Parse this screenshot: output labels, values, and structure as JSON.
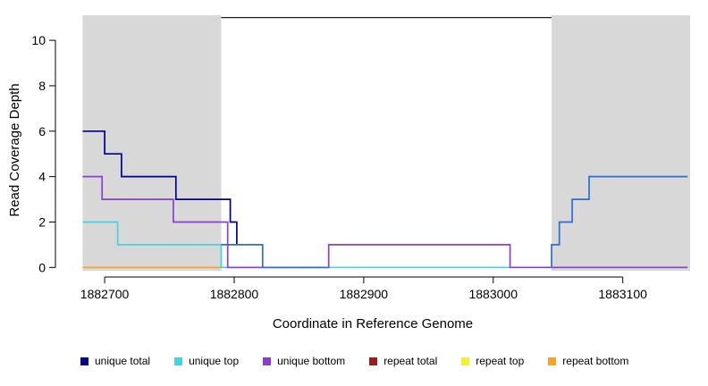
{
  "chart_data": {
    "type": "line",
    "subtype": "step",
    "title": "",
    "xlabel": "Coordinate in Reference Genome",
    "ylabel": "Read Coverage Depth",
    "xlim": [
      1882662,
      1883152
    ],
    "ylim": [
      -0.42,
      11.46
    ],
    "x_ticks": [
      1882700,
      1882800,
      1882900,
      1883000,
      1883100
    ],
    "y_ticks": [
      0,
      2,
      4,
      6,
      8,
      10
    ],
    "grid": false,
    "plot_background": "#FFFFFF",
    "background_bands": {
      "color": "#D8D8D8",
      "y_extent": [
        -0.15,
        11.1
      ],
      "regions": [
        [
          1882683,
          1882790
        ],
        [
          1883045,
          1883152
        ]
      ]
    },
    "top_marker": {
      "y": 11,
      "x1": 1882790,
      "x2": 1883045,
      "color": "#000000"
    },
    "series": [
      {
        "name": "repeat bottom",
        "color": "#F5A329",
        "points": [
          [
            1882683,
            0
          ],
          [
            1882790,
            0
          ]
        ]
      },
      {
        "name": "unique top",
        "color": "#45D4DE",
        "points": [
          [
            1882683,
            2
          ],
          [
            1882710,
            2
          ],
          [
            1882710,
            1
          ],
          [
            1882790,
            1
          ],
          [
            1882790,
            0
          ],
          [
            1883013,
            0
          ]
        ]
      },
      {
        "name": "unique bottom",
        "color": "#8A3FD1",
        "points": [
          [
            1882683,
            4
          ],
          [
            1882698,
            4
          ],
          [
            1882698,
            3
          ],
          [
            1882753,
            3
          ],
          [
            1882753,
            2
          ],
          [
            1882795,
            2
          ],
          [
            1882795,
            0
          ],
          [
            1882873,
            0
          ],
          [
            1882873,
            1
          ],
          [
            1883013,
            1
          ],
          [
            1883013,
            0
          ],
          [
            1883150,
            0
          ]
        ]
      },
      {
        "name": "unique total left",
        "color": "#00008B",
        "points": [
          [
            1882683,
            6
          ],
          [
            1882700,
            6
          ],
          [
            1882700,
            5
          ],
          [
            1882713,
            5
          ],
          [
            1882713,
            4
          ],
          [
            1882755,
            4
          ],
          [
            1882755,
            3
          ],
          [
            1882797,
            3
          ],
          [
            1882797,
            2
          ],
          [
            1882802,
            2
          ],
          [
            1882802,
            1
          ]
        ]
      },
      {
        "name": "unique total mid",
        "color": "#2B6FD4",
        "points": [
          [
            1882790,
            1
          ],
          [
            1882822,
            1
          ],
          [
            1882822,
            0
          ],
          [
            1882873,
            0
          ]
        ]
      },
      {
        "name": "unique total right",
        "color": "#2B6FD4",
        "points": [
          [
            1883045,
            0
          ],
          [
            1883045,
            1
          ],
          [
            1883051,
            1
          ],
          [
            1883051,
            2
          ],
          [
            1883061,
            2
          ],
          [
            1883061,
            3
          ],
          [
            1883074,
            3
          ],
          [
            1883074,
            4
          ],
          [
            1883150,
            4
          ]
        ]
      }
    ],
    "legend_position": "bottom",
    "legend": [
      {
        "label": "unique total",
        "color": "#00008B"
      },
      {
        "label": "unique top",
        "color": "#45D4DE"
      },
      {
        "label": "unique bottom",
        "color": "#8A3FD1"
      },
      {
        "label": "repeat total",
        "color": "#9B1B1B"
      },
      {
        "label": "repeat top",
        "color": "#F5EE31"
      },
      {
        "label": "repeat bottom",
        "color": "#F5A329"
      }
    ]
  }
}
